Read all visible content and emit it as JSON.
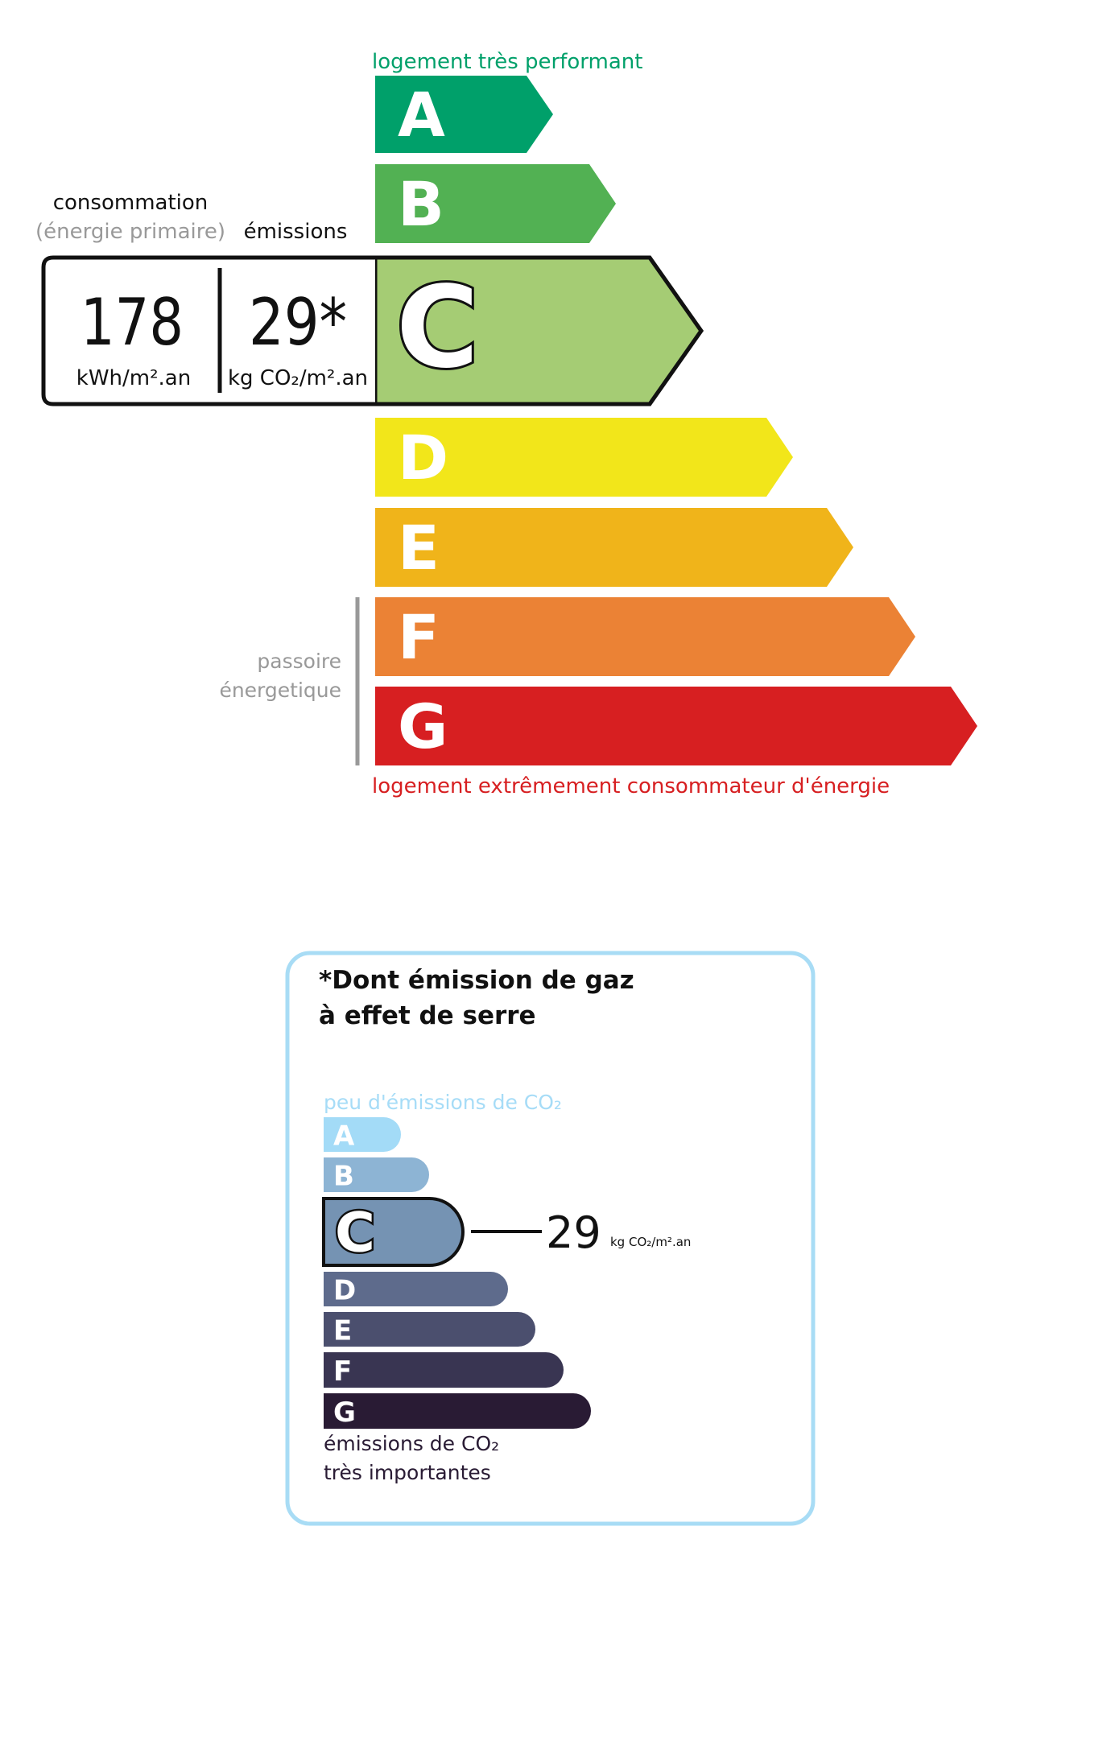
{
  "energy": {
    "top_label": "logement très performant",
    "bottom_label": "logement extrêmement consommateur d'énergie",
    "consumption_label": "consommation",
    "consumption_sublabel": "(énergie primaire)",
    "emissions_label": "émissions",
    "consumption_value": "178",
    "consumption_unit": "kWh/m².an",
    "emissions_value": "29*",
    "emissions_unit": "kg CO₂/m².an",
    "passoire_line1": "passoire",
    "passoire_line2": "énergetique",
    "selected_class": "C",
    "classes": [
      {
        "letter": "A",
        "color": "#00a06a"
      },
      {
        "letter": "B",
        "color": "#52b153"
      },
      {
        "letter": "C",
        "color": "#a5cc74"
      },
      {
        "letter": "D",
        "color": "#f2e61a"
      },
      {
        "letter": "E",
        "color": "#f0b41a"
      },
      {
        "letter": "F",
        "color": "#eb8235"
      },
      {
        "letter": "G",
        "color": "#d71f21"
      }
    ],
    "top_label_color": "#00a06a",
    "bottom_label_color": "#d71f21"
  },
  "ghg": {
    "title_line1": "*Dont émission de gaz",
    "title_line2": "à effet de serre",
    "top_label": "peu d'émissions de CO₂",
    "bottom_label_line1": "émissions de CO₂",
    "bottom_label_line2": "très importantes",
    "value": "29",
    "unit": "kg CO₂/m².an",
    "selected_class": "C",
    "border_color": "#a8dcf5",
    "classes": [
      {
        "letter": "A",
        "color": "#a3dbf7"
      },
      {
        "letter": "B",
        "color": "#8db4d4"
      },
      {
        "letter": "C",
        "color": "#7593b3"
      },
      {
        "letter": "D",
        "color": "#5e6b8c"
      },
      {
        "letter": "E",
        "color": "#4b4f6e"
      },
      {
        "letter": "F",
        "color": "#393552"
      },
      {
        "letter": "G",
        "color": "#291b34"
      }
    ]
  }
}
